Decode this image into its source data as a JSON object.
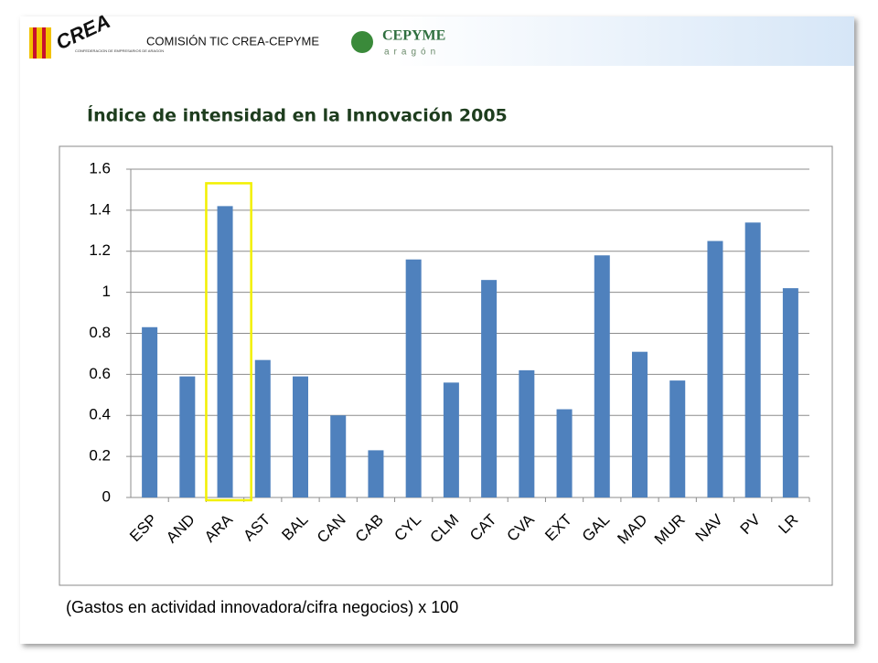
{
  "header": {
    "crea_logo": "CREA",
    "crea_subtitle": "CONFEDERACION DE EMPRESARIOS DE ARAGON",
    "commission": "COMISIÓN TIC CREA-CEPYME",
    "cepyme_logo": "CEPYME",
    "cepyme_subtitle": "aragón"
  },
  "chart_data": {
    "type": "bar",
    "title": "Índice de intensidad en la Innovación 2005",
    "categories": [
      "ESP",
      "AND",
      "ARA",
      "AST",
      "BAL",
      "CAN",
      "CAB",
      "CYL",
      "CLM",
      "CAT",
      "CVA",
      "EXT",
      "GAL",
      "MAD",
      "MUR",
      "NAV",
      "PV",
      "LR"
    ],
    "values": [
      0.83,
      0.59,
      1.42,
      0.67,
      0.59,
      0.4,
      0.23,
      1.16,
      0.56,
      1.06,
      0.62,
      0.43,
      1.18,
      0.71,
      0.57,
      1.25,
      1.34,
      1.02
    ],
    "color": "#4f81bd",
    "ylim": [
      0,
      1.6
    ],
    "yticks": [
      0,
      0.2,
      0.4,
      0.6,
      0.8,
      1,
      1.2,
      1.4,
      1.6
    ],
    "grid": true,
    "highlight_index": 2,
    "highlight_color": "#f2f000",
    "note": "(Gastos en actividad innovadora/cifra negocios) x 100"
  }
}
